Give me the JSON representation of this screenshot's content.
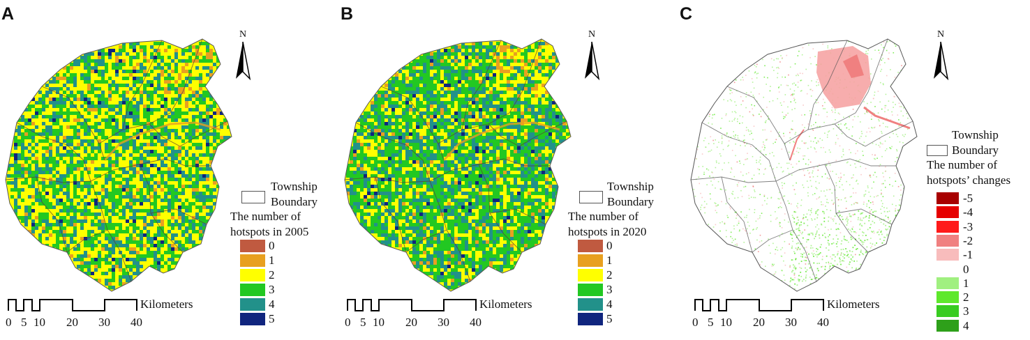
{
  "panels": [
    {
      "id": "A",
      "letter": "A",
      "map_type": "hotspots",
      "palette": [
        "#c05a40",
        "#e8a020",
        "#ffff00",
        "#22c822",
        "#22918a",
        "#10257e"
      ],
      "boundary_label_line1": "Township",
      "boundary_label_line2": "Boundary",
      "legend_title_line1": "The number of",
      "legend_title_line2": "hotspots in 2005",
      "legend": [
        {
          "label": "0",
          "color": "#c05a40"
        },
        {
          "label": "1",
          "color": "#e8a020"
        },
        {
          "label": "2",
          "color": "#ffff00"
        },
        {
          "label": "3",
          "color": "#22c822"
        },
        {
          "label": "4",
          "color": "#22918a"
        },
        {
          "label": "5",
          "color": "#10257e"
        }
      ],
      "north_label": "N",
      "scale_unit": "Kilometers",
      "scale_ticks": [
        "0",
        "5",
        "10",
        "20",
        "30",
        "40"
      ]
    },
    {
      "id": "B",
      "letter": "B",
      "map_type": "hotspots",
      "palette": [
        "#c05a40",
        "#e8a020",
        "#ffff00",
        "#22c822",
        "#22918a",
        "#10257e"
      ],
      "boundary_label_line1": "Township",
      "boundary_label_line2": "Boundary",
      "legend_title_line1": "The number of",
      "legend_title_line2": "hotspots in 2020",
      "legend": [
        {
          "label": "0",
          "color": "#c05a40"
        },
        {
          "label": "1",
          "color": "#e8a020"
        },
        {
          "label": "2",
          "color": "#ffff00"
        },
        {
          "label": "3",
          "color": "#22c822"
        },
        {
          "label": "4",
          "color": "#22918a"
        },
        {
          "label": "5",
          "color": "#10257e"
        }
      ],
      "north_label": "N",
      "scale_unit": "Kilometers",
      "scale_ticks": [
        "0",
        "5",
        "10",
        "20",
        "30",
        "40"
      ]
    },
    {
      "id": "C",
      "letter": "C",
      "map_type": "changes",
      "boundary_label_line1": "Township",
      "boundary_label_line2": "Boundary",
      "legend_title_line1": "The number of",
      "legend_title_line2": "hotspots’ changes",
      "legend": [
        {
          "label": "-5",
          "color": "#a80000"
        },
        {
          "label": "-4",
          "color": "#e60000"
        },
        {
          "label": "-3",
          "color": "#ff1a1a"
        },
        {
          "label": "-2",
          "color": "#f08080"
        },
        {
          "label": "-1",
          "color": "#f8bcbc"
        },
        {
          "label": "0",
          "color": "#ffffff"
        },
        {
          "label": "1",
          "color": "#a0f080"
        },
        {
          "label": "2",
          "color": "#5ee82c"
        },
        {
          "label": "3",
          "color": "#38cc20"
        },
        {
          "label": "4",
          "color": "#2ea01a"
        }
      ],
      "north_label": "N",
      "scale_unit": "Kilometers",
      "scale_ticks": [
        "0",
        "5",
        "10",
        "20",
        "30",
        "40"
      ]
    }
  ]
}
